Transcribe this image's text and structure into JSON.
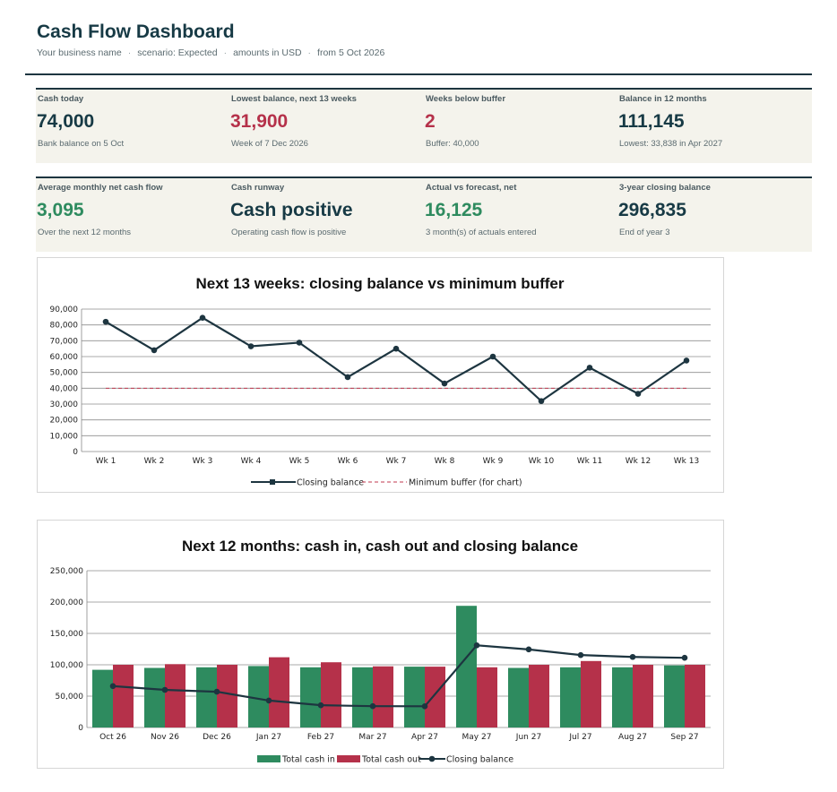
{
  "header": {
    "title": "Cash Flow Dashboard",
    "business": "Your business name",
    "scenario": "scenario: Expected",
    "currency": "amounts in USD",
    "from": "from 5 Oct 2026",
    "separator": "·"
  },
  "kpis_row1": [
    {
      "label": "Cash today",
      "value": "74,000",
      "note": "Bank balance on 5 Oct",
      "tone": "dark"
    },
    {
      "label": "Lowest balance, next 13 weeks",
      "value": "31,900",
      "note": "Week of 7 Dec 2026",
      "tone": "red"
    },
    {
      "label": "Weeks below buffer",
      "value": "2",
      "note": "Buffer: 40,000",
      "tone": "red"
    },
    {
      "label": "Balance in 12 months",
      "value": "111,145",
      "note": "Lowest: 33,838 in Apr 2027",
      "tone": "dark"
    }
  ],
  "kpis_row2": [
    {
      "label": "Average monthly net cash flow",
      "value": "3,095",
      "note": "Over the next 12 months",
      "tone": "green"
    },
    {
      "label": "Cash runway",
      "value": "Cash positive",
      "note": "Operating cash flow is positive",
      "tone": "dark"
    },
    {
      "label": "Actual vs forecast, net",
      "value": "16,125",
      "note": "3 month(s) of actuals entered",
      "tone": "green"
    },
    {
      "label": "3-year closing balance",
      "value": "296,835",
      "note": "End of year 3",
      "tone": "dark"
    }
  ],
  "colors": {
    "dark": "#1d3540",
    "red": "#b5314a",
    "green": "#2e8b5f",
    "cash_in": "#2e8b5f",
    "cash_out": "#b5314a",
    "line": "#1d3540",
    "buffer": "#c0394f"
  },
  "chart_data": [
    {
      "type": "line",
      "title": "Next 13 weeks: closing balance vs minimum buffer",
      "categories": [
        "Wk 1",
        "Wk 2",
        "Wk 3",
        "Wk 4",
        "Wk 5",
        "Wk 6",
        "Wk 7",
        "Wk 8",
        "Wk 9",
        "Wk 10",
        "Wk 11",
        "Wk 12",
        "Wk 13"
      ],
      "series": [
        {
          "name": "Closing balance",
          "style": "solid-marker",
          "values": [
            82000,
            64000,
            84500,
            66500,
            68800,
            47000,
            65000,
            43000,
            60000,
            31900,
            53000,
            36500,
            57500
          ]
        },
        {
          "name": "Minimum buffer (for chart)",
          "style": "dashed",
          "values": [
            40000,
            40000,
            40000,
            40000,
            40000,
            40000,
            40000,
            40000,
            40000,
            40000,
            40000,
            40000,
            40000
          ]
        }
      ],
      "ylim": [
        0,
        90000
      ],
      "yticks": [
        "0",
        "10,000",
        "20,000",
        "30,000",
        "40,000",
        "50,000",
        "60,000",
        "70,000",
        "80,000",
        "90,000"
      ],
      "grid": true,
      "legend": "bottom"
    },
    {
      "type": "bar",
      "title": "Next 12 months: cash in, cash out and closing balance",
      "categories": [
        "Oct 26",
        "Nov 26",
        "Dec 26",
        "Jan 27",
        "Feb 27",
        "Mar 27",
        "Apr 27",
        "May 27",
        "Jun 27",
        "Jul 27",
        "Aug 27",
        "Sep 27"
      ],
      "series": [
        {
          "name": "Total cash in",
          "kind": "bar",
          "values": [
            92000,
            95000,
            96000,
            98000,
            96000,
            96000,
            97000,
            194000,
            95000,
            96000,
            96000,
            99000
          ]
        },
        {
          "name": "Total cash out",
          "kind": "bar",
          "values": [
            100000,
            101000,
            100000,
            112000,
            104000,
            97500,
            97000,
            96000,
            100000,
            106000,
            100000,
            100000
          ]
        },
        {
          "name": "Closing balance",
          "kind": "line",
          "values": [
            66000,
            60000,
            57000,
            43000,
            35500,
            34000,
            33838,
            131000,
            124500,
            115500,
            112500,
            111145
          ]
        }
      ],
      "ylim": [
        0,
        250000
      ],
      "yticks": [
        "0",
        "50,000",
        "100,000",
        "150,000",
        "200,000",
        "250,000"
      ],
      "grid": true,
      "legend": "bottom"
    }
  ]
}
